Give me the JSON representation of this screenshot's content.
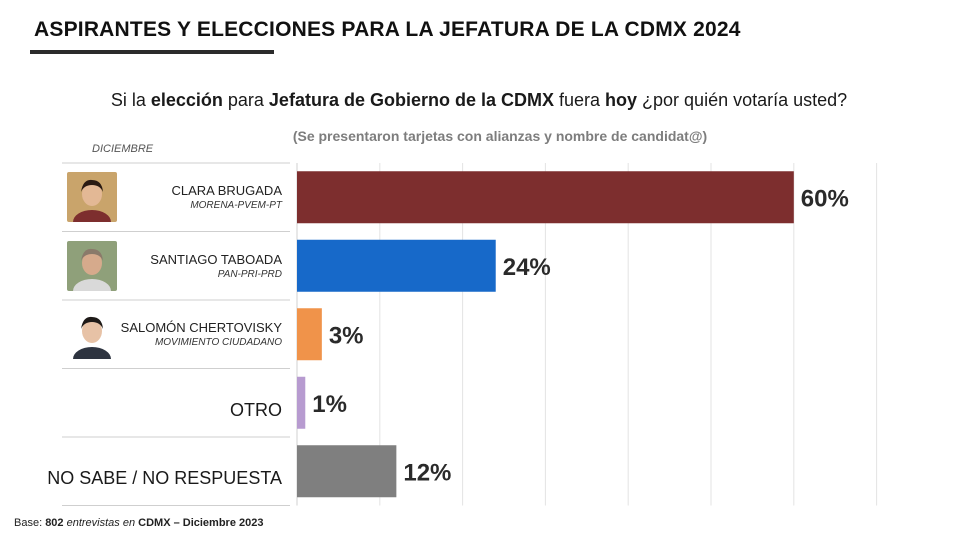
{
  "header": {
    "title": "ASPIRANTES Y ELECCIONES PARA LA JEFATURA DE LA CDMX 2024"
  },
  "question": {
    "p1": "Si la ",
    "b1": "elección",
    "p2": " para ",
    "b2": "Jefatura de Gobierno de la CDMX",
    "p3": " fuera ",
    "b3": "hoy",
    "p4": " ¿por quién votaría usted?"
  },
  "note": "(Se presentaron tarjetas con alianzas y nombre de candidat@)",
  "period_label": "DICIEMBRE",
  "chart_data": {
    "type": "bar",
    "orientation": "horizontal",
    "unit": "%",
    "xlim": [
      0,
      70
    ],
    "grid": true,
    "categories": [
      {
        "name": "CLARA BRUGADA",
        "party": "MORENA-PVEM-PT",
        "value": 60,
        "label": "60%",
        "color": "#7d2e2e",
        "photo": "clara-brugada-photo"
      },
      {
        "name": "SANTIAGO TABOADA",
        "party": "PAN-PRI-PRD",
        "value": 24,
        "label": "24%",
        "color": "#1769c9",
        "photo": "santiago-taboada-photo"
      },
      {
        "name": "SALOMÓN CHERTOVISKY",
        "party": "MOVIMIENTO CIUDADANO",
        "value": 3,
        "label": "3%",
        "color": "#f0934a",
        "photo": "salomon-chertovisky-photo"
      },
      {
        "name": "OTRO",
        "party": "",
        "value": 1,
        "label": "1%",
        "color": "#b79bd0",
        "photo": ""
      },
      {
        "name": "NO SABE / NO RESPUESTA",
        "party": "",
        "value": 12,
        "label": "12%",
        "color": "#7f7f7f",
        "photo": ""
      }
    ]
  },
  "footer": {
    "p1": "Base: ",
    "b1": "802",
    "i1": " entrevistas en ",
    "b2": "CDMX – Diciembre 2023"
  }
}
